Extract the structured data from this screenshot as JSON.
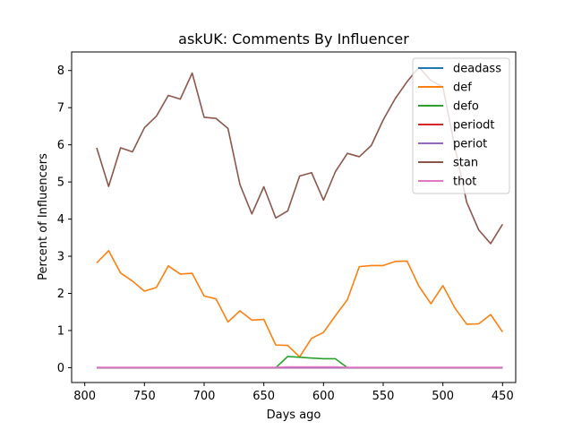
{
  "chart_data": {
    "type": "line",
    "title": "askUK: Comments By Influencer",
    "xlabel": "Days ago",
    "ylabel": "Percent of Influencers",
    "xlim": [
      811,
      439
    ],
    "ylim": [
      -0.4,
      8.5
    ],
    "xticks": [
      800,
      750,
      700,
      650,
      600,
      550,
      500,
      450
    ],
    "yticks": [
      0,
      1,
      2,
      3,
      4,
      5,
      6,
      7,
      8
    ],
    "grid": false,
    "legend_position": "top-right",
    "x": [
      790,
      780,
      770,
      760,
      750,
      740,
      730,
      720,
      710,
      700,
      690,
      680,
      670,
      660,
      650,
      640,
      630,
      620,
      610,
      600,
      590,
      580,
      570,
      560,
      550,
      540,
      530,
      520,
      510,
      500,
      490,
      480,
      470,
      460,
      450
    ],
    "series": [
      {
        "name": "deadass",
        "color": "#1f77b4",
        "values": [
          0,
          0,
          0,
          0,
          0,
          0,
          0,
          0,
          0,
          0,
          0,
          0,
          0,
          0,
          0,
          0,
          0,
          0,
          0,
          0,
          0,
          0,
          0,
          0,
          0,
          0,
          0,
          0,
          0,
          0,
          0,
          0,
          0,
          0,
          0
        ]
      },
      {
        "name": "def",
        "color": "#ff7f0e",
        "values": [
          2.82,
          3.15,
          2.55,
          2.33,
          2.06,
          2.16,
          2.74,
          2.52,
          2.54,
          1.93,
          1.85,
          1.23,
          1.53,
          1.28,
          1.3,
          0.61,
          0.6,
          0.29,
          0.79,
          0.95,
          1.4,
          1.83,
          2.72,
          2.75,
          2.75,
          2.86,
          2.87,
          2.19,
          1.72,
          2.21,
          1.61,
          1.17,
          1.18,
          1.43,
          0.96
        ]
      },
      {
        "name": "defo",
        "color": "#2ca02c",
        "values": [
          0,
          0,
          0,
          0,
          0,
          0,
          0,
          0,
          0,
          0,
          0,
          0,
          0,
          0,
          0,
          0,
          0.3,
          0.28,
          0.26,
          0.24,
          0.24,
          0,
          0,
          0,
          0,
          0,
          0,
          0,
          0,
          0,
          0,
          0,
          0,
          0,
          0
        ]
      },
      {
        "name": "periodt",
        "color": "#d62728",
        "values": [
          0,
          0,
          0,
          0,
          0,
          0,
          0,
          0,
          0,
          0,
          0,
          0,
          0,
          0,
          0,
          0,
          0,
          0,
          0,
          0,
          0,
          0,
          0,
          0,
          0,
          0,
          0,
          0,
          0,
          0,
          0,
          0,
          0,
          0,
          0
        ]
      },
      {
        "name": "periot",
        "color": "#9467bd",
        "values": [
          0,
          0,
          0,
          0,
          0,
          0,
          0,
          0,
          0,
          0,
          0,
          0,
          0,
          0,
          0,
          0,
          0,
          0,
          0,
          0,
          0,
          0,
          0,
          0,
          0,
          0,
          0,
          0,
          0,
          0,
          0,
          0,
          0,
          0,
          0
        ]
      },
      {
        "name": "stan",
        "color": "#8c564b",
        "values": [
          5.92,
          4.88,
          5.92,
          5.81,
          6.46,
          6.77,
          7.33,
          7.23,
          7.93,
          6.74,
          6.71,
          6.44,
          4.93,
          4.14,
          4.87,
          4.03,
          4.22,
          5.16,
          5.25,
          4.51,
          5.28,
          5.77,
          5.68,
          5.98,
          6.67,
          7.24,
          7.7,
          8.09,
          7.73,
          7.56,
          5.94,
          4.45,
          3.71,
          3.34,
          3.86
        ]
      },
      {
        "name": "thot",
        "color": "#e377c2",
        "values": [
          0.01,
          0.01,
          0.01,
          0.01,
          0.01,
          0.01,
          0.01,
          0.01,
          0.01,
          0.01,
          0.01,
          0.01,
          0.01,
          0.01,
          0.01,
          0.01,
          0.02,
          0.02,
          0.02,
          0.02,
          0.02,
          0.01,
          0.01,
          0.01,
          0.01,
          0.01,
          0.01,
          0.01,
          0.01,
          0.01,
          0.01,
          0.01,
          0.01,
          0.01,
          0.01
        ]
      }
    ]
  }
}
